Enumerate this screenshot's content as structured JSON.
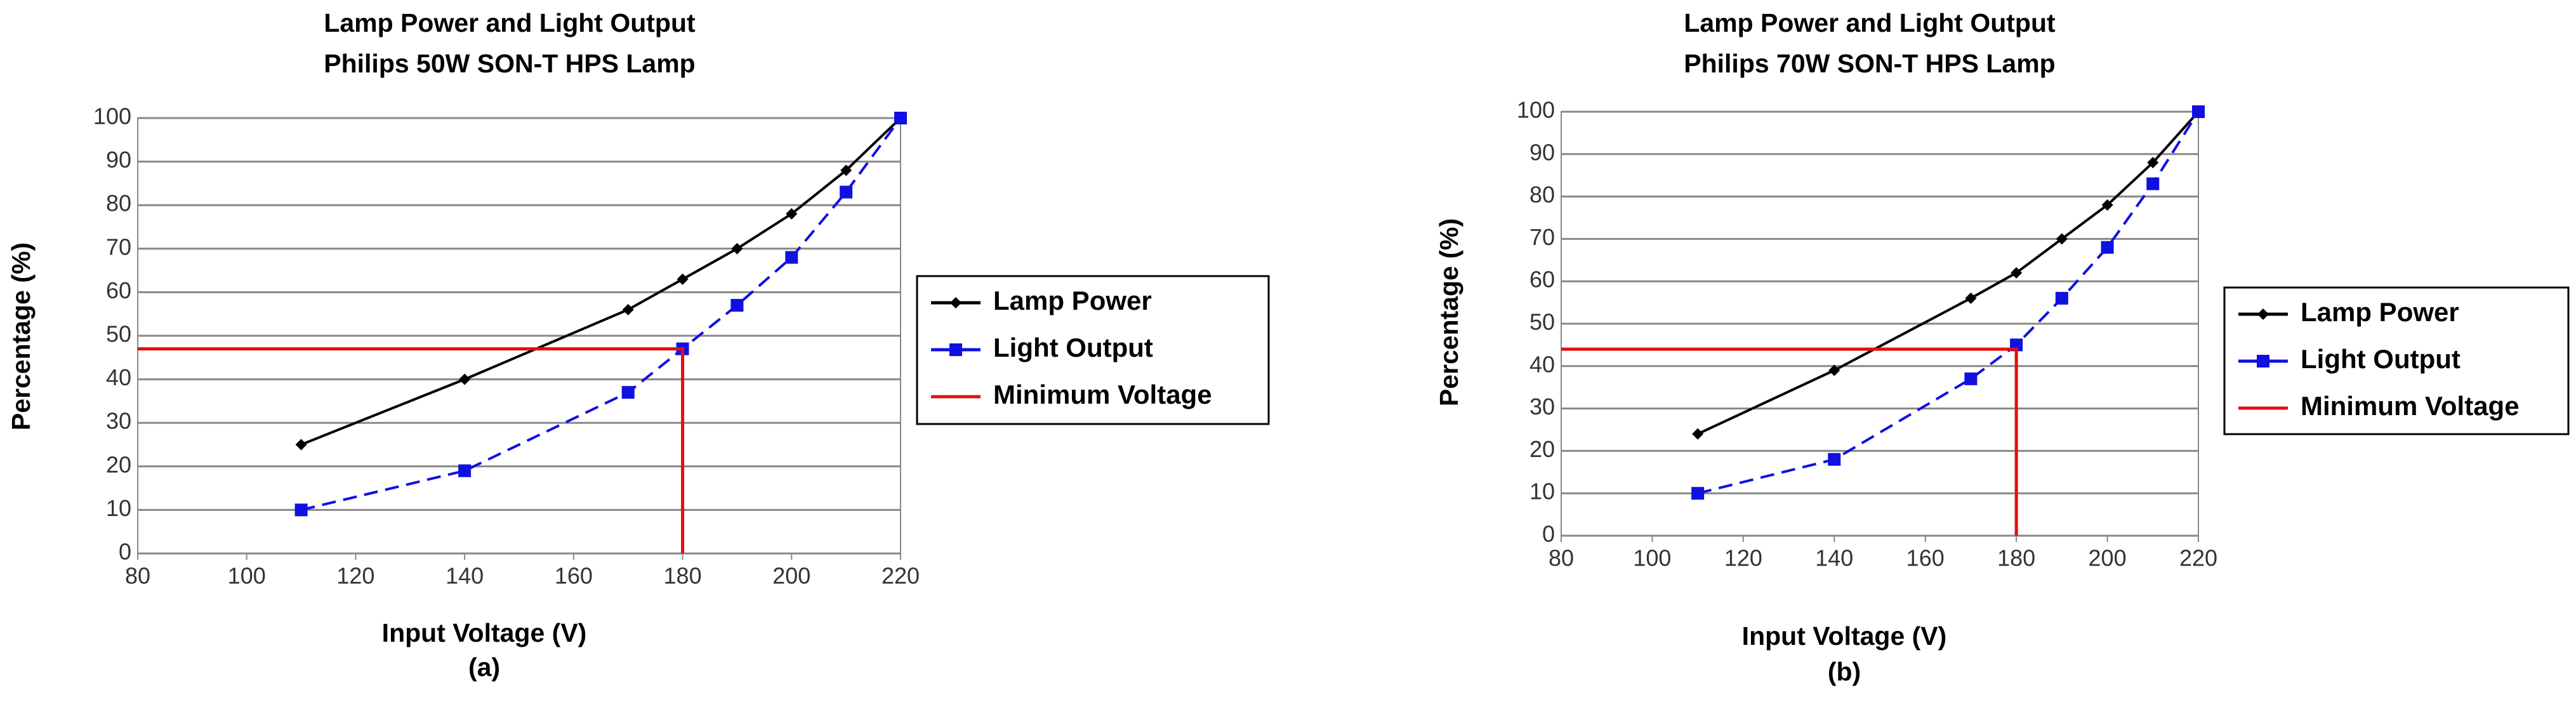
{
  "chart_data": [
    {
      "type": "line",
      "title": "Lamp Power and Light Output",
      "subtitle": "Philips 50W SON-T HPS Lamp",
      "x_label": "Input Voltage (V)",
      "y_label": "Percentage (%)",
      "caption": "(a)",
      "xlim": [
        80,
        220
      ],
      "xticks": [
        80,
        100,
        120,
        140,
        160,
        180,
        200,
        220
      ],
      "ylim": [
        0,
        100
      ],
      "yticks": [
        0,
        10,
        20,
        30,
        40,
        50,
        60,
        70,
        80,
        90,
        100
      ],
      "grid": true,
      "legend": "right",
      "series": [
        {
          "name": "Lamp Power",
          "color": "#000000",
          "marker": "diamond",
          "dashed": false,
          "x": [
            110,
            140,
            170,
            180,
            190,
            200,
            210,
            220
          ],
          "values": [
            25,
            40,
            56,
            63,
            70,
            78,
            88,
            100
          ]
        },
        {
          "name": "Light Output",
          "color": "#1010e0",
          "marker": "square",
          "dashed": true,
          "x": [
            110,
            140,
            170,
            180,
            190,
            200,
            210,
            220
          ],
          "values": [
            10,
            19,
            37,
            47,
            57,
            68,
            83,
            100
          ]
        },
        {
          "name": "Minimum Voltage",
          "color": "#e01010",
          "marker": "none",
          "dashed": false,
          "x": [
            80,
            180,
            180
          ],
          "values": [
            47,
            47,
            0
          ]
        }
      ]
    },
    {
      "type": "line",
      "title": "Lamp Power and Light Output",
      "subtitle": "Philips 70W SON-T HPS Lamp",
      "x_label": "Input Voltage (V)",
      "y_label": "Percentage (%)",
      "caption": "(b)",
      "xlim": [
        80,
        220
      ],
      "xticks": [
        80,
        100,
        120,
        140,
        160,
        180,
        200,
        220
      ],
      "ylim": [
        0,
        100
      ],
      "yticks": [
        0,
        10,
        20,
        30,
        40,
        50,
        60,
        70,
        80,
        90,
        100
      ],
      "grid": true,
      "legend": "right",
      "series": [
        {
          "name": "Lamp Power",
          "color": "#000000",
          "marker": "diamond",
          "dashed": false,
          "x": [
            110,
            140,
            170,
            180,
            190,
            200,
            210,
            220
          ],
          "values": [
            24,
            39,
            56,
            62,
            70,
            78,
            88,
            100
          ]
        },
        {
          "name": "Light Output",
          "color": "#1010e0",
          "marker": "square",
          "dashed": true,
          "x": [
            110,
            140,
            170,
            180,
            190,
            200,
            210,
            220
          ],
          "values": [
            10,
            18,
            37,
            45,
            56,
            68,
            83,
            100
          ]
        },
        {
          "name": "Minimum Voltage",
          "color": "#e01010",
          "marker": "none",
          "dashed": false,
          "x": [
            80,
            180,
            180
          ],
          "values": [
            44,
            44,
            0
          ]
        }
      ]
    }
  ]
}
